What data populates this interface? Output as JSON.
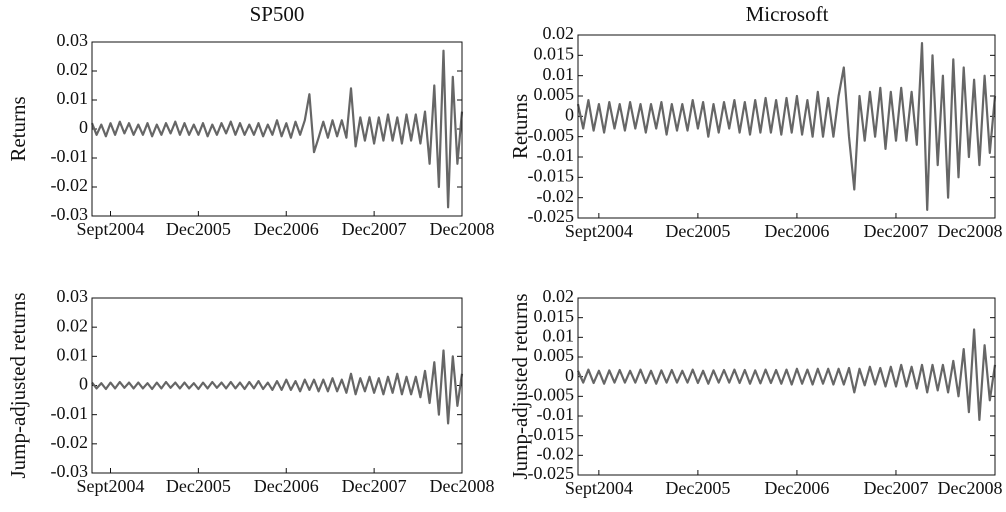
{
  "chart_data": [
    {
      "type": "line",
      "title": "SP500",
      "ylabel": "Returns",
      "categories": [
        null,
        null,
        null,
        null,
        "Sept2004",
        null,
        null,
        null,
        null,
        null,
        null,
        null,
        null,
        null,
        null,
        null,
        null,
        null,
        null,
        null,
        null,
        null,
        null,
        "Dec2005",
        null,
        null,
        null,
        null,
        null,
        null,
        null,
        null,
        null,
        null,
        null,
        null,
        null,
        null,
        null,
        null,
        null,
        null,
        "Dec2006",
        null,
        null,
        null,
        null,
        null,
        null,
        null,
        null,
        null,
        null,
        null,
        null,
        null,
        null,
        null,
        null,
        null,
        null,
        "Dec2007",
        null,
        null,
        null,
        null,
        null,
        null,
        null,
        null,
        null,
        null,
        null,
        null,
        null,
        null,
        null,
        null,
        null,
        null,
        "Dec2008"
      ],
      "series": [
        {
          "color": "#666666",
          "values": [
            0.002,
            -0.002,
            0.0015,
            -0.0025,
            0.002,
            -0.002,
            0.0025,
            -0.0015,
            0.002,
            -0.002,
            0.0015,
            -0.002,
            0.002,
            -0.0025,
            0.0015,
            -0.002,
            0.002,
            -0.0015,
            0.0025,
            -0.002,
            0.002,
            -0.002,
            0.0015,
            -0.002,
            0.002,
            -0.0025,
            0.0015,
            -0.002,
            0.002,
            -0.0015,
            0.0025,
            -0.002,
            0.002,
            -0.002,
            0.0015,
            -0.002,
            0.002,
            -0.0025,
            0.0015,
            -0.002,
            0.003,
            -0.0025,
            0.002,
            -0.003,
            0.0025,
            -0.002,
            0.003,
            0.012,
            -0.008,
            -0.003,
            0.0025,
            -0.003,
            0.003,
            -0.0025,
            0.003,
            -0.003,
            0.014,
            -0.006,
            0.004,
            -0.004,
            0.004,
            -0.005,
            0.004,
            -0.004,
            0.005,
            -0.004,
            0.004,
            -0.005,
            0.005,
            -0.004,
            0.005,
            -0.005,
            0.006,
            -0.012,
            0.015,
            -0.02,
            0.027,
            -0.027,
            0.018,
            -0.012,
            0.006
          ]
        }
      ],
      "ylim": [
        -0.03,
        0.03
      ],
      "yticks": [
        0.03,
        0.02,
        0.01,
        0,
        -0.01,
        -0.02,
        -0.03
      ]
    },
    {
      "type": "line",
      "title": "Microsoft",
      "ylabel": "Returns",
      "categories": [
        null,
        null,
        null,
        null,
        "Sept2004",
        null,
        null,
        null,
        null,
        null,
        null,
        null,
        null,
        null,
        null,
        null,
        null,
        null,
        null,
        null,
        null,
        null,
        null,
        "Dec2005",
        null,
        null,
        null,
        null,
        null,
        null,
        null,
        null,
        null,
        null,
        null,
        null,
        null,
        null,
        null,
        null,
        null,
        null,
        "Dec2006",
        null,
        null,
        null,
        null,
        null,
        null,
        null,
        null,
        null,
        null,
        null,
        null,
        null,
        null,
        null,
        null,
        null,
        null,
        "Dec2007",
        null,
        null,
        null,
        null,
        null,
        null,
        null,
        null,
        null,
        null,
        null,
        null,
        null,
        null,
        null,
        null,
        null,
        null,
        "Dec2008"
      ],
      "series": [
        {
          "color": "#666666",
          "values": [
            0.003,
            -0.003,
            0.004,
            -0.0035,
            0.003,
            -0.004,
            0.0035,
            -0.003,
            0.003,
            -0.0035,
            0.0035,
            -0.003,
            0.003,
            -0.004,
            0.003,
            -0.003,
            0.0035,
            -0.0045,
            0.003,
            -0.0035,
            0.003,
            -0.0035,
            0.004,
            -0.003,
            0.0035,
            -0.005,
            0.003,
            -0.004,
            0.0035,
            -0.003,
            0.004,
            -0.004,
            0.0035,
            -0.0045,
            0.004,
            -0.004,
            0.0045,
            -0.004,
            0.004,
            -0.0045,
            0.0045,
            -0.004,
            0.005,
            -0.0045,
            0.004,
            -0.005,
            0.006,
            -0.005,
            0.0045,
            -0.005,
            0.005,
            0.012,
            -0.005,
            -0.018,
            0.005,
            -0.006,
            0.006,
            -0.005,
            0.007,
            -0.008,
            0.006,
            -0.006,
            0.007,
            -0.006,
            0.006,
            -0.007,
            0.018,
            -0.023,
            0.015,
            -0.012,
            0.01,
            -0.02,
            0.014,
            -0.015,
            0.012,
            -0.01,
            0.009,
            -0.012,
            0.01,
            -0.009,
            0.005
          ]
        }
      ],
      "ylim": [
        -0.025,
        0.02
      ],
      "yticks": [
        0.02,
        0.015,
        0.01,
        0.005,
        0,
        -0.005,
        -0.01,
        -0.015,
        -0.02,
        -0.025
      ]
    },
    {
      "type": "line",
      "ylabel": "Jump-adjusted returns",
      "categories": [
        null,
        null,
        null,
        null,
        "Sept2004",
        null,
        null,
        null,
        null,
        null,
        null,
        null,
        null,
        null,
        null,
        null,
        null,
        null,
        null,
        null,
        null,
        null,
        null,
        "Dec2005",
        null,
        null,
        null,
        null,
        null,
        null,
        null,
        null,
        null,
        null,
        null,
        null,
        null,
        null,
        null,
        null,
        null,
        null,
        "Dec2006",
        null,
        null,
        null,
        null,
        null,
        null,
        null,
        null,
        null,
        null,
        null,
        null,
        null,
        null,
        null,
        null,
        null,
        null,
        "Dec2007",
        null,
        null,
        null,
        null,
        null,
        null,
        null,
        null,
        null,
        null,
        null,
        null,
        null,
        null,
        null,
        null,
        null,
        null,
        "Dec2008"
      ],
      "series": [
        {
          "color": "#666666",
          "values": [
            0.001,
            -0.001,
            0.0008,
            -0.0012,
            0.001,
            -0.001,
            0.0012,
            -0.0008,
            0.001,
            -0.001,
            0.001,
            -0.001,
            0.0008,
            -0.0012,
            0.001,
            -0.001,
            0.0012,
            -0.0008,
            0.001,
            -0.001,
            0.001,
            -0.001,
            0.0008,
            -0.0012,
            0.001,
            -0.001,
            0.0012,
            -0.0008,
            0.001,
            -0.001,
            0.0012,
            -0.001,
            0.001,
            -0.0012,
            0.0012,
            -0.001,
            0.0015,
            -0.0012,
            0.001,
            -0.0015,
            0.0015,
            -0.0015,
            0.002,
            -0.0015,
            0.0015,
            -0.002,
            0.002,
            -0.0015,
            0.002,
            -0.002,
            0.002,
            -0.002,
            0.0025,
            -0.002,
            0.002,
            -0.0025,
            0.004,
            -0.003,
            0.0025,
            -0.002,
            0.003,
            -0.0025,
            0.0025,
            -0.003,
            0.003,
            -0.0025,
            0.004,
            -0.003,
            0.003,
            -0.003,
            0.003,
            -0.004,
            0.005,
            -0.006,
            0.008,
            -0.01,
            0.012,
            -0.013,
            0.01,
            -0.007,
            0.004
          ]
        }
      ],
      "ylim": [
        -0.03,
        0.03
      ],
      "yticks": [
        0.03,
        0.02,
        0.01,
        0,
        -0.01,
        -0.02,
        -0.03
      ]
    },
    {
      "type": "line",
      "ylabel": "Jump-adjusted returns",
      "categories": [
        null,
        null,
        null,
        null,
        "Sept2004",
        null,
        null,
        null,
        null,
        null,
        null,
        null,
        null,
        null,
        null,
        null,
        null,
        null,
        null,
        null,
        null,
        null,
        null,
        "Dec2005",
        null,
        null,
        null,
        null,
        null,
        null,
        null,
        null,
        null,
        null,
        null,
        null,
        null,
        null,
        null,
        null,
        null,
        null,
        "Dec2006",
        null,
        null,
        null,
        null,
        null,
        null,
        null,
        null,
        null,
        null,
        null,
        null,
        null,
        null,
        null,
        null,
        null,
        null,
        "Dec2007",
        null,
        null,
        null,
        null,
        null,
        null,
        null,
        null,
        null,
        null,
        null,
        null,
        null,
        null,
        null,
        null,
        null,
        null,
        "Dec2008"
      ],
      "series": [
        {
          "color": "#666666",
          "values": [
            0.0015,
            -0.0015,
            0.0018,
            -0.0016,
            0.0015,
            -0.0018,
            0.0016,
            -0.0015,
            0.0017,
            -0.0015,
            0.0015,
            -0.0015,
            0.0018,
            -0.0016,
            0.0015,
            -0.0018,
            0.0016,
            -0.0015,
            0.0017,
            -0.0015,
            0.0015,
            -0.0015,
            0.0018,
            -0.0016,
            0.0015,
            -0.0018,
            0.0016,
            -0.0015,
            0.0017,
            -0.0015,
            0.0018,
            -0.0016,
            0.0017,
            -0.0018,
            0.0016,
            -0.0017,
            0.0018,
            -0.0016,
            0.0017,
            -0.0018,
            0.0018,
            -0.002,
            0.002,
            -0.0018,
            0.0018,
            -0.002,
            0.002,
            -0.0018,
            0.002,
            -0.002,
            0.002,
            -0.002,
            0.0022,
            -0.004,
            0.002,
            -0.0022,
            0.0025,
            -0.002,
            0.0022,
            -0.0025,
            0.0025,
            -0.0025,
            0.003,
            -0.0025,
            0.0025,
            -0.003,
            0.003,
            -0.004,
            0.003,
            -0.0035,
            0.003,
            -0.004,
            0.004,
            -0.005,
            0.007,
            -0.009,
            0.012,
            -0.011,
            0.008,
            -0.006,
            0.003
          ]
        }
      ],
      "ylim": [
        -0.025,
        0.02
      ],
      "yticks": [
        0.02,
        0.015,
        0.01,
        0.005,
        0,
        -0.005,
        -0.01,
        -0.015,
        -0.02,
        -0.025
      ]
    }
  ]
}
